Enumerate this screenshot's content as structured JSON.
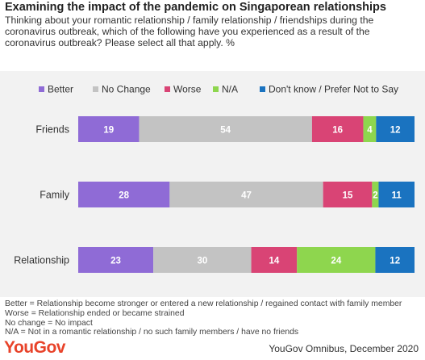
{
  "title": "Examining the impact of the pandemic on Singaporean relationships",
  "subtitle": "Thinking about your romantic relationship / family relationship / friendships during the coronavirus outbreak, which of the following have you experienced as a result of the coronavirus outbreak? Please select all that apply. %",
  "chart_data": {
    "type": "bar",
    "orientation": "horizontal",
    "stacked": true,
    "categories": [
      "Friends",
      "Family",
      "Relationship"
    ],
    "series": [
      {
        "name": "Better",
        "color": "#8f6bd6",
        "values": [
          19,
          28,
          23
        ]
      },
      {
        "name": "No Change",
        "color": "#c3c3c3",
        "values": [
          54,
          47,
          30
        ]
      },
      {
        "name": "Worse",
        "color": "#d94475",
        "values": [
          16,
          15,
          14
        ]
      },
      {
        "name": "N/A",
        "color": "#8ed64e",
        "values": [
          4,
          2,
          24
        ]
      },
      {
        "name": "Don't know / Prefer Not to Say",
        "color": "#1a73c0",
        "values": [
          12,
          11,
          12
        ]
      }
    ],
    "legend_position": "top",
    "grid": false
  },
  "notes": [
    "Better = Relationship become stronger or entered a new relationship / regained contact with family member",
    "Worse = Relationship ended or became strained",
    "No change = No impact",
    "N/A = Not in a romantic relationship / no such family members / have no friends"
  ],
  "logo_text": "YouGov",
  "source": "YouGov Omnibus, December 2020"
}
